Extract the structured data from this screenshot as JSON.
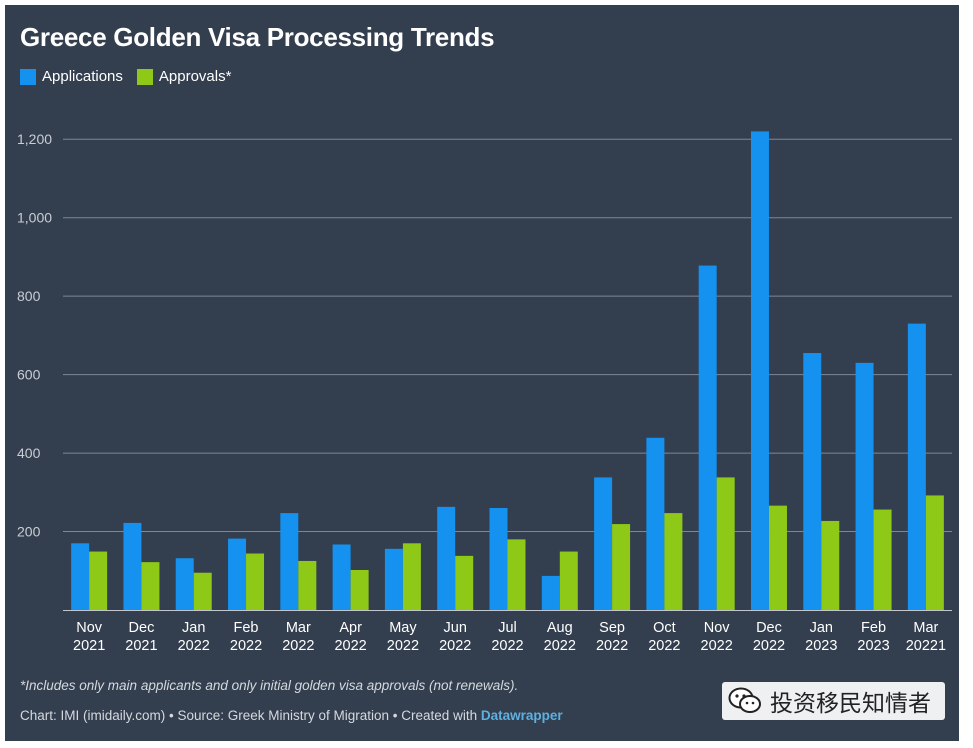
{
  "title": "Greece Golden Visa Processing Trends",
  "legend": [
    {
      "label": "Applications",
      "color": "#1591ef"
    },
    {
      "label": "Approvals*",
      "color": "#8ec918"
    }
  ],
  "chart_data": {
    "type": "bar",
    "title": "Greece Golden Visa Processing Trends",
    "categories": [
      [
        "Nov",
        "2021"
      ],
      [
        "Dec",
        "2021"
      ],
      [
        "Jan",
        "2022"
      ],
      [
        "Feb",
        "2022"
      ],
      [
        "Mar",
        "2022"
      ],
      [
        "Apr",
        "2022"
      ],
      [
        "May",
        "2022"
      ],
      [
        "Jun",
        "2022"
      ],
      [
        "Jul",
        "2022"
      ],
      [
        "Aug",
        "2022"
      ],
      [
        "Sep",
        "2022"
      ],
      [
        "Oct",
        "2022"
      ],
      [
        "Nov",
        "2022"
      ],
      [
        "Dec",
        "2022"
      ],
      [
        "Jan",
        "2023"
      ],
      [
        "Feb",
        "2023"
      ],
      [
        "Mar",
        "20221"
      ]
    ],
    "series": [
      {
        "name": "Applications",
        "color": "#1591ef",
        "values": [
          170,
          222,
          132,
          182,
          247,
          167,
          156,
          263,
          260,
          87,
          338,
          439,
          878,
          1220,
          655,
          630,
          730
        ]
      },
      {
        "name": "Approvals*",
        "color": "#8ec918",
        "values": [
          149,
          122,
          95,
          144,
          125,
          102,
          170,
          138,
          180,
          149,
          219,
          247,
          338,
          266,
          227,
          256,
          292
        ]
      }
    ],
    "yticks": [
      200,
      400,
      600,
      800,
      "1,000",
      "1,200"
    ],
    "ytick_values": [
      200,
      400,
      600,
      800,
      1000,
      1200
    ],
    "ylim": [
      0,
      1300
    ],
    "grid": true,
    "legend_position": "top-left",
    "xlabel": "",
    "ylabel": ""
  },
  "footer": {
    "note": "*Includes only main applicants and only initial golden visa approvals (not renewals).",
    "source_prefix": "Chart: IMI (imidaily.com) • Source: Greek Ministry of Migration • Created with ",
    "source_link": "Datawrapper"
  },
  "watermark": {
    "label": "投资移民知情者",
    "icon": "wechat-icon"
  },
  "colors": {
    "background": "#333e4e",
    "grid": "#7e8794",
    "axis": "#c2c7cf"
  }
}
